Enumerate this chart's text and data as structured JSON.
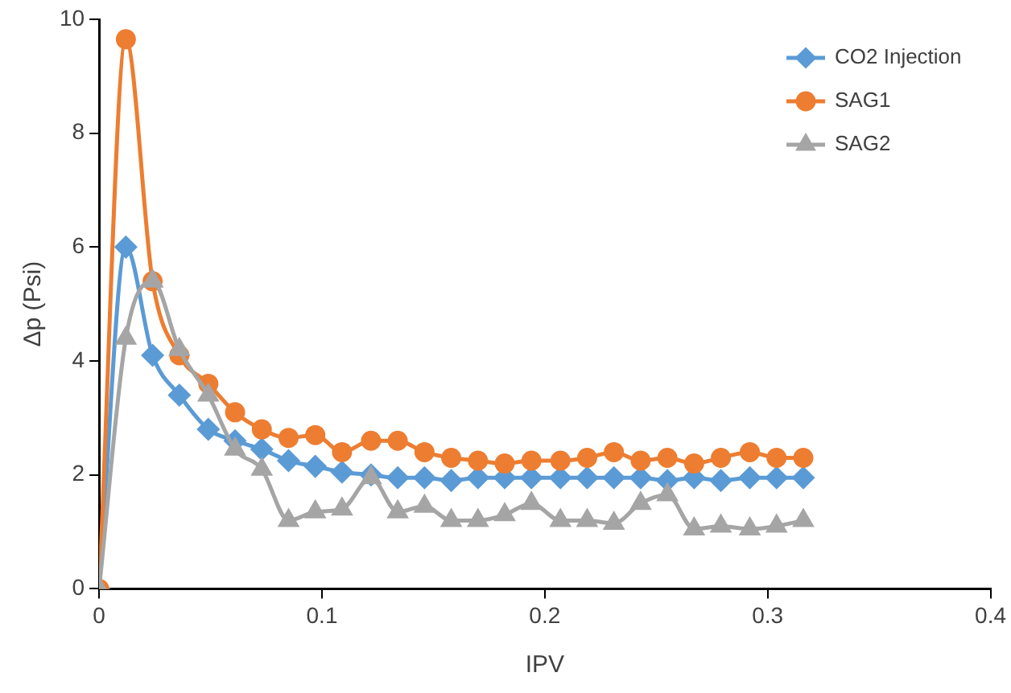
{
  "chart_data": {
    "type": "line",
    "xlabel": "IPV",
    "ylabel": "Δp (Psi)",
    "x": [
      0,
      0.012,
      0.024,
      0.036,
      0.049,
      0.061,
      0.073,
      0.085,
      0.097,
      0.109,
      0.122,
      0.134,
      0.146,
      0.158,
      0.17,
      0.182,
      0.194,
      0.207,
      0.219,
      0.231,
      0.243,
      0.255,
      0.267,
      0.279,
      0.292,
      0.304,
      0.316
    ],
    "series": [
      {
        "name": "CO2 Injection",
        "color": "#5b9bd5",
        "marker": "diamond",
        "values": [
          0,
          6.0,
          4.1,
          3.4,
          2.8,
          2.6,
          2.45,
          2.25,
          2.15,
          2.05,
          2.0,
          1.95,
          1.95,
          1.9,
          1.95,
          1.95,
          1.95,
          1.95,
          1.95,
          1.95,
          1.95,
          1.9,
          1.95,
          1.9,
          1.95,
          1.95,
          1.95
        ]
      },
      {
        "name": "SAG1",
        "color": "#ed7d31",
        "marker": "circle",
        "values": [
          0,
          9.65,
          5.4,
          4.1,
          3.6,
          3.1,
          2.8,
          2.65,
          2.7,
          2.4,
          2.6,
          2.6,
          2.4,
          2.3,
          2.25,
          2.2,
          2.25,
          2.25,
          2.3,
          2.4,
          2.25,
          2.3,
          2.2,
          2.3,
          2.4,
          2.3,
          2.3
        ]
      },
      {
        "name": "SAG2",
        "color": "#a5a5a5",
        "marker": "triangle",
        "values": [
          0,
          4.4,
          5.4,
          4.2,
          3.4,
          2.45,
          2.1,
          1.2,
          1.35,
          1.4,
          1.95,
          1.35,
          1.45,
          1.2,
          1.2,
          1.3,
          1.5,
          1.2,
          1.2,
          1.15,
          1.5,
          1.65,
          1.05,
          1.1,
          1.05,
          1.1,
          1.2
        ]
      }
    ],
    "xlim": [
      0,
      0.4
    ],
    "xticks": [
      0,
      0.1,
      0.2,
      0.3,
      0.4
    ],
    "ylim": [
      0,
      10
    ],
    "yticks": [
      0,
      2,
      4,
      6,
      8,
      10
    ],
    "grid": false,
    "legend": "top right"
  }
}
